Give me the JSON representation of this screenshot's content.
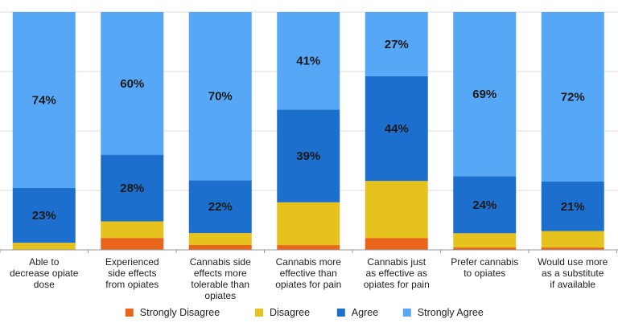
{
  "chart_data": {
    "type": "bar",
    "stacked": true,
    "percent_scale": true,
    "grid": true,
    "legend_position": "bottom",
    "categories": [
      [
        "Able to",
        "decrease opiate",
        "dose"
      ],
      [
        "Experienced",
        "side effects",
        "from opiates"
      ],
      [
        "Cannabis side",
        "effects more",
        "tolerable than",
        "opiates"
      ],
      [
        "Cannabis more",
        "effective than",
        "opiates for pain"
      ],
      [
        "Cannabis just",
        "as effective as",
        "opiates for pain"
      ],
      [
        "Prefer cannabis",
        "to opiates"
      ],
      [
        "Would use more",
        "as a substitute",
        "if available"
      ]
    ],
    "series": [
      {
        "name": "Strongly Disagree",
        "color": "#e8651a",
        "values": [
          0,
          5,
          2,
          2,
          5,
          1,
          1
        ]
      },
      {
        "name": "Disagree",
        "color": "#e6c21f",
        "values": [
          3,
          7,
          5,
          18,
          24,
          6,
          7
        ]
      },
      {
        "name": "Agree",
        "color": "#1c6fcc",
        "values": [
          23,
          28,
          22,
          39,
          44,
          24,
          21
        ]
      },
      {
        "name": "Strongly Agree",
        "color": "#56a8f7",
        "values": [
          74,
          60,
          70,
          41,
          27,
          69,
          72
        ]
      }
    ],
    "data_labels": [
      {
        "series": "Agree",
        "text": [
          "23%",
          "28%",
          "22%",
          "39%",
          "44%",
          "24%",
          "21%"
        ]
      },
      {
        "series": "Strongly Agree",
        "text": [
          "74%",
          "60%",
          "70%",
          "41%",
          "27%",
          "69%",
          "72%"
        ]
      }
    ]
  }
}
